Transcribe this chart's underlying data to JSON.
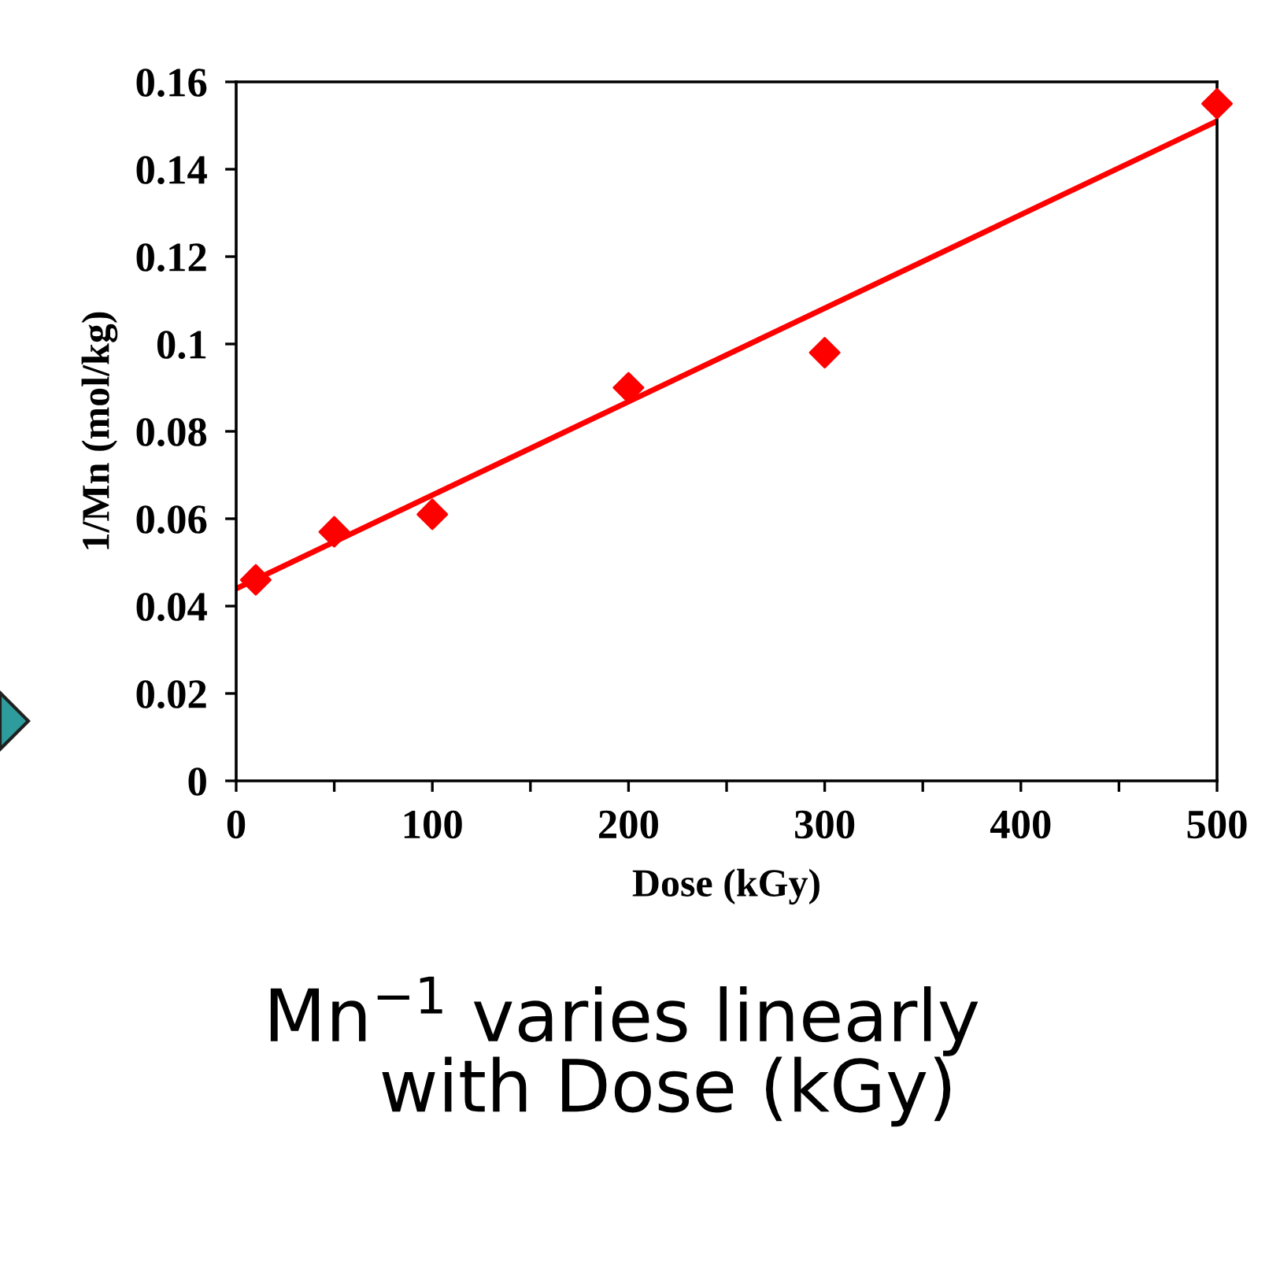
{
  "chart_data": {
    "type": "scatter",
    "xlabel": "Dose (kGy)",
    "ylabel": "1/Mn (mol/kg)",
    "xlim": [
      0,
      500
    ],
    "ylim": [
      0,
      0.16
    ],
    "xticks": [
      0,
      {
        "value": 50,
        "label": null
      },
      100,
      {
        "value": 150,
        "label": null
      },
      200,
      {
        "value": 250,
        "label": null
      },
      300,
      {
        "value": 350,
        "label": null
      },
      400,
      {
        "value": 450,
        "label": null
      },
      500
    ],
    "yticks": [
      0,
      0.02,
      0.04,
      0.06,
      0.08,
      0.1,
      0.12,
      0.14,
      0.16
    ],
    "grid": false,
    "legend": false,
    "marker": "diamond",
    "series": [
      {
        "color": "#ff0000",
        "x": [
          10,
          50,
          100,
          200,
          300,
          500
        ],
        "values": [
          0.046,
          0.057,
          0.061,
          0.09,
          0.098,
          0.155
        ]
      },
      {
        "type": "line",
        "color": "#ff0000",
        "line_style": "solid",
        "marker": "none",
        "x": [
          0,
          500
        ],
        "values": [
          0.044,
          0.151
        ]
      }
    ],
    "annotations": [
      "Mn$^{−1}$ varies linearly\n    with Dose (kGy)"
    ]
  }
}
